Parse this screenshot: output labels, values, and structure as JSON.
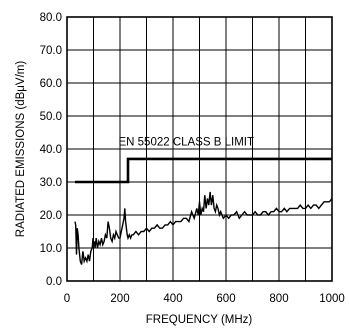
{
  "chart_data": {
    "type": "line",
    "xlabel": "FREQUENCY (MHz)",
    "ylabel": "RADIATED EMISSIONS (dBμV/m)",
    "xlim": [
      0,
      1000
    ],
    "ylim": [
      0,
      80
    ],
    "x_ticks": [
      "0",
      "200",
      "400",
      "600",
      "800",
      "1000"
    ],
    "y_ticks": [
      "0.0",
      "10.0",
      "20.0",
      "30.0",
      "40.0",
      "50.0",
      "60.0",
      "70.0",
      "80.0"
    ],
    "grid": true,
    "annotations": [
      {
        "text": "EN 55022 CLASS B LIMIT",
        "x": 450,
        "y": 41
      }
    ],
    "series": [
      {
        "line_width": "thick",
        "x": [
          30,
          230,
          230,
          1000
        ],
        "y": [
          30,
          30,
          37,
          37
        ]
      },
      {
        "line_width": "thin",
        "x": [
          30,
          33,
          36,
          39,
          42,
          45,
          50,
          55,
          60,
          65,
          70,
          75,
          80,
          85,
          90,
          95,
          98,
          100,
          103,
          106,
          110,
          115,
          120,
          125,
          130,
          135,
          140,
          145,
          150,
          155,
          160,
          165,
          170,
          175,
          180,
          185,
          190,
          195,
          200,
          205,
          210,
          215,
          218,
          221,
          224,
          227,
          230,
          235,
          240,
          245,
          250,
          260,
          270,
          280,
          290,
          300,
          310,
          320,
          330,
          340,
          350,
          360,
          370,
          380,
          390,
          400,
          410,
          420,
          430,
          440,
          450,
          460,
          470,
          480,
          490,
          495,
          500,
          505,
          510,
          515,
          520,
          525,
          530,
          535,
          540,
          545,
          550,
          555,
          560,
          565,
          570,
          575,
          580,
          590,
          600,
          610,
          620,
          630,
          640,
          650,
          660,
          670,
          680,
          690,
          700,
          710,
          720,
          730,
          740,
          750,
          760,
          770,
          780,
          790,
          800,
          810,
          820,
          830,
          840,
          850,
          860,
          870,
          880,
          890,
          900,
          910,
          920,
          930,
          940,
          950,
          960,
          970,
          980,
          990,
          1000
        ],
        "y": [
          18,
          17,
          8,
          16,
          14,
          10,
          6,
          5,
          9,
          6,
          7,
          6,
          8,
          6,
          9,
          10,
          13,
          11,
          12,
          10,
          13,
          10,
          12,
          11,
          13,
          11,
          12,
          14,
          13,
          18,
          16,
          13,
          12,
          14,
          13,
          15,
          14,
          13,
          13,
          15,
          17,
          19,
          22,
          18,
          16,
          14,
          13,
          14,
          13,
          14,
          14,
          15,
          14,
          15,
          15,
          16,
          15,
          16,
          16,
          17,
          16,
          16,
          17,
          17,
          18,
          17,
          18,
          18,
          18,
          19,
          19,
          18,
          21,
          19,
          22,
          20,
          24,
          20,
          22,
          21,
          26,
          22,
          25,
          23,
          27,
          23,
          26,
          22,
          21,
          23,
          22,
          20,
          21,
          19,
          20,
          19,
          20,
          20,
          21,
          19,
          20,
          21,
          20,
          20,
          20,
          21,
          20,
          20,
          21,
          21,
          20,
          21,
          21,
          22,
          21,
          21,
          22,
          21,
          22,
          22,
          22,
          22,
          23,
          22,
          22,
          23,
          22,
          23,
          23,
          22,
          23,
          24,
          24,
          24,
          25
        ]
      }
    ]
  }
}
